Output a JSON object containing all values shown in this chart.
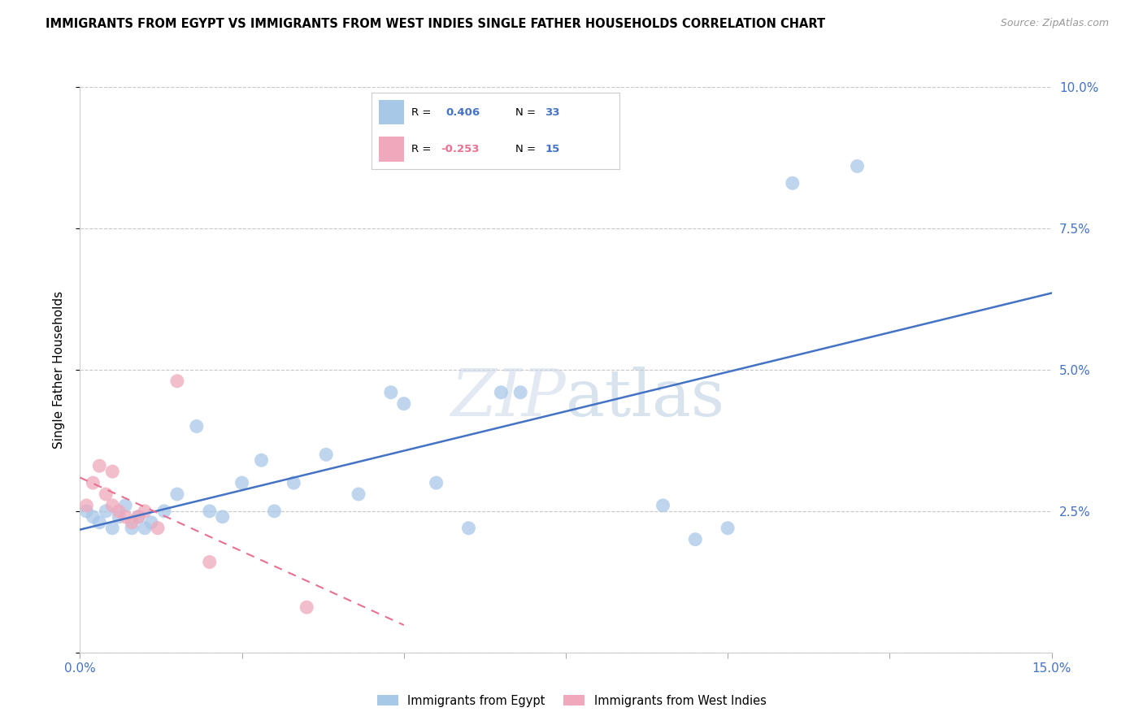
{
  "title": "IMMIGRANTS FROM EGYPT VS IMMIGRANTS FROM WEST INDIES SINGLE FATHER HOUSEHOLDS CORRELATION CHART",
  "source": "Source: ZipAtlas.com",
  "ylabel": "Single Father Households",
  "xlim": [
    0,
    0.15
  ],
  "ylim": [
    0,
    0.1
  ],
  "legend_egypt": "Immigrants from Egypt",
  "legend_wi": "Immigrants from West Indies",
  "R_egypt": "0.406",
  "N_egypt": "33",
  "R_wi": "-0.253",
  "N_wi": "15",
  "blue_color": "#a8c8e8",
  "pink_color": "#f0a8bc",
  "blue_line_color": "#4472c4",
  "pink_line_color": "#e87090",
  "axis_color": "#4472c4",
  "grid_color": "#c8c8c8",
  "egypt_x": [
    0.001,
    0.002,
    0.003,
    0.004,
    0.005,
    0.006,
    0.007,
    0.008,
    0.009,
    0.01,
    0.011,
    0.013,
    0.015,
    0.018,
    0.02,
    0.022,
    0.025,
    0.028,
    0.03,
    0.033,
    0.038,
    0.043,
    0.048,
    0.05,
    0.055,
    0.06,
    0.065,
    0.068,
    0.09,
    0.095,
    0.1,
    0.11,
    0.12
  ],
  "egypt_y": [
    0.025,
    0.024,
    0.023,
    0.025,
    0.022,
    0.024,
    0.026,
    0.022,
    0.024,
    0.022,
    0.023,
    0.025,
    0.028,
    0.04,
    0.025,
    0.024,
    0.03,
    0.034,
    0.025,
    0.03,
    0.035,
    0.028,
    0.046,
    0.044,
    0.03,
    0.022,
    0.046,
    0.046,
    0.026,
    0.02,
    0.022,
    0.083,
    0.086
  ],
  "wi_x": [
    0.001,
    0.002,
    0.003,
    0.004,
    0.005,
    0.005,
    0.006,
    0.007,
    0.008,
    0.009,
    0.01,
    0.012,
    0.015,
    0.02,
    0.035
  ],
  "wi_y": [
    0.026,
    0.03,
    0.033,
    0.028,
    0.026,
    0.032,
    0.025,
    0.024,
    0.023,
    0.024,
    0.025,
    0.022,
    0.048,
    0.016,
    0.008
  ]
}
